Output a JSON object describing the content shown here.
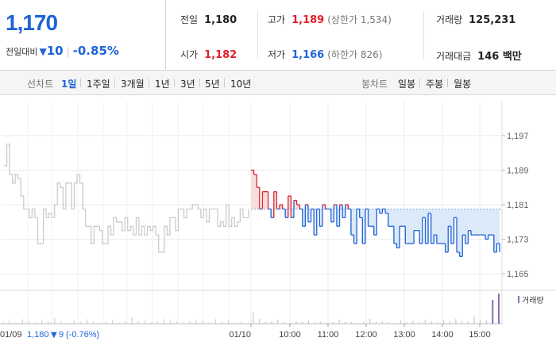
{
  "quote": {
    "price": "1,170",
    "change_label": "전일대비",
    "change_value": "10",
    "change_pct": "-0.85%",
    "stats": {
      "prev_close": {
        "label": "전일",
        "value": "1,180"
      },
      "high": {
        "label": "고가",
        "value": "1,189",
        "sub": "(상한가 1,534)"
      },
      "volume": {
        "label": "거래량",
        "value": "125,231"
      },
      "open": {
        "label": "시가",
        "value": "1,182"
      },
      "low": {
        "label": "저가",
        "value": "1,166",
        "sub": "(하한가 826)"
      },
      "trade_amount": {
        "label": "거래대금",
        "value": "146 백만"
      }
    }
  },
  "period_tabs": {
    "label": "선차트",
    "items": [
      "1일",
      "1주일",
      "3개월",
      "1년",
      "3년",
      "5년",
      "10년"
    ],
    "active": "1일"
  },
  "candle_tabs": {
    "label": "봉차트",
    "items": [
      "일봉",
      "주봉",
      "월봉"
    ]
  },
  "colors": {
    "up": "#e0202b",
    "down": "#1e63d8",
    "prev_day": "#c8c8c8",
    "fill_down": "#dce9f8",
    "fill_up": "#f7dede"
  },
  "chart_data": {
    "type": "line",
    "ylim": [
      1163,
      1199
    ],
    "y_ticks": [
      "1,197",
      "1,189",
      "1,181",
      "1,173",
      "1,165"
    ],
    "baseline": 1180,
    "x_tick_labels": [
      "01/10",
      "10:00",
      "11:00",
      "12:00",
      "13:00",
      "14:00",
      "15:00"
    ],
    "prev_day_label": "01/09",
    "prev_day_close": "1,180",
    "prev_day_change": "9",
    "prev_day_pct": "(-0.76%)",
    "volume_label": "거래량",
    "series": [
      {
        "values": [
          1190,
          1195,
          1188,
          1186,
          1188,
          1187,
          1183,
          1180,
          1180,
          1178,
          1180,
          1178,
          1172,
          1172,
          1180,
          1178,
          1179,
          1178,
          1181,
          1186,
          1185,
          1180,
          1186,
          1186,
          1180,
          1186,
          1188,
          1186,
          1180,
          1176,
          1176,
          1172,
          1176,
          1176,
          1175,
          1172,
          1172,
          1176,
          1174,
          1178,
          1177,
          1177,
          1175,
          1178,
          1175,
          1176,
          1174,
          1178,
          1174,
          1176,
          1174,
          1176,
          1175,
          1176,
          1174,
          1170,
          1170,
          1176,
          1174,
          1178,
          1178,
          1175,
          1180,
          1180,
          1178,
          1180,
          1180,
          1181,
          1181,
          1180,
          1178,
          1180,
          1177,
          1180,
          1180,
          1180,
          1176,
          1177,
          1176,
          1181,
          1176,
          1178,
          1176,
          1177,
          1180,
          1178,
          1178,
          1180
        ]
      },
      {
        "values": [
          1189,
          1188,
          1185,
          1180,
          1184,
          1184,
          1180,
          1178,
          1184,
          1180,
          1181,
          1180,
          1178,
          1183,
          1178,
          1182,
          1181,
          1180,
          1176,
          1181,
          1177,
          1180,
          1174,
          1180,
          1176,
          1181,
          1180,
          1180,
          1177,
          1181,
          1176,
          1181,
          1178,
          1181,
          1180,
          1174,
          1172,
          1180,
          1178,
          1172,
          1180,
          1176,
          1176,
          1174,
          1180,
          1179,
          1180,
          1179,
          1176,
          1176,
          1172,
          1171,
          1176,
          1176,
          1172,
          1172,
          1172,
          1175,
          1175,
          1172,
          1178,
          1172,
          1179,
          1172,
          1174,
          1172,
          1172,
          1172,
          1170,
          1176,
          1172,
          1178,
          1170,
          1169,
          1174,
          1172,
          1175,
          1174,
          1174,
          1174,
          1174,
          1174,
          1173,
          1174,
          1174,
          1170,
          1172,
          1170
        ]
      }
    ]
  }
}
